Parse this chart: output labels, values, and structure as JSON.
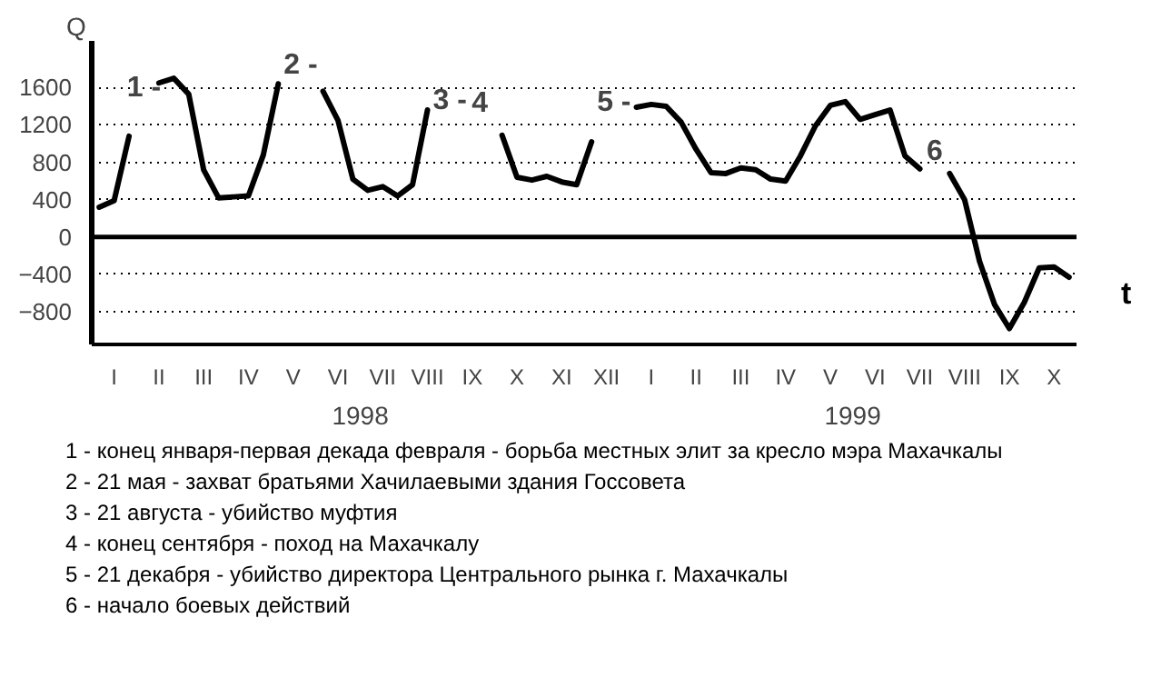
{
  "chart_data": {
    "type": "line",
    "xlabel": "t",
    "ylabel": "Q",
    "categories": [
      null,
      "I",
      null,
      null,
      "II",
      null,
      null,
      "III",
      null,
      null,
      "IV",
      null,
      null,
      "V",
      null,
      null,
      "VI",
      null,
      null,
      "VII",
      null,
      null,
      "VIII",
      null,
      null,
      "IX",
      null,
      null,
      "X",
      null,
      null,
      "XI",
      null,
      null,
      "XII",
      null,
      null,
      "I",
      null,
      null,
      "II",
      null,
      null,
      "III",
      null,
      null,
      "IV",
      null,
      null,
      "V",
      null,
      null,
      "VI",
      null,
      null,
      "VII",
      null,
      null,
      "VIII",
      null,
      null,
      "IX",
      null,
      null,
      "X",
      null
    ],
    "values": [
      320,
      390,
      1080,
      null,
      1650,
      1700,
      1530,
      720,
      420,
      430,
      440,
      880,
      1640,
      null,
      null,
      1560,
      1250,
      620,
      500,
      540,
      440,
      560,
      1360,
      null,
      null,
      null,
      null,
      1090,
      640,
      610,
      650,
      590,
      560,
      1020,
      null,
      null,
      1390,
      1420,
      1400,
      1230,
      940,
      690,
      680,
      740,
      720,
      620,
      600,
      870,
      1190,
      1410,
      1450,
      1260,
      1310,
      1360,
      870,
      730,
      null,
      680,
      400,
      -260,
      -720,
      -980,
      -700,
      -330,
      -320,
      -430
    ],
    "color": "#000000",
    "line_style": "solid",
    "marker": "none",
    "ylim": [
      -1150,
      2100
    ],
    "yticks": [
      -800,
      -400,
      0,
      400,
      800,
      1200,
      1600
    ],
    "grid": "y",
    "ref_lines": [
      {
        "axis": "y",
        "value": 0,
        "label": null,
        "color": "#000000",
        "line_style": "solid"
      }
    ],
    "annotations": [
      "1998",
      "1999",
      {
        "text": "1 -"
      },
      {
        "text": "2 -"
      },
      {
        "text": "3 -"
      },
      {
        "text": "4"
      },
      {
        "text": "5 -"
      },
      {
        "text": "6"
      },
      "1 - конец января-первая декада февраля - борьба местных элит за кресло мэра Махачкалы",
      "2 - 21 мая - захват братьями Хачилаевыми здания Госсовета",
      "3 - 21 августа - убийство муфтия",
      "4 - конец сентября - поход на Махачкалу",
      "5 - 21 декабря - убийство директора Центрального рынка г. Махачкалы",
      "6 - начало боевых действий"
    ]
  }
}
